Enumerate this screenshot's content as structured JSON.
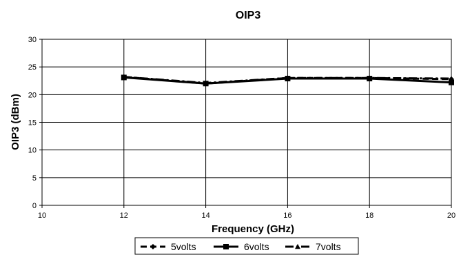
{
  "chart_data": {
    "type": "line",
    "title": "OIP3",
    "xlabel": "Frequency (GHz)",
    "ylabel": "OIP3 (dBm)",
    "xlim": [
      10,
      20
    ],
    "ylim": [
      0,
      30
    ],
    "xticks": [
      10,
      12,
      14,
      16,
      18,
      20
    ],
    "yticks": [
      0,
      5,
      10,
      15,
      20,
      25,
      30
    ],
    "xtick_labels": [
      "10",
      "12",
      "14",
      "16",
      "18",
      "20"
    ],
    "ytick_labels": [
      "0",
      "5",
      "10",
      "15",
      "20",
      "25",
      "30"
    ],
    "grid": true,
    "legend_position": "bottom",
    "x": [
      12,
      14,
      16,
      18,
      20
    ],
    "series": [
      {
        "name": "5volts",
        "marker": "diamond",
        "dash": "dashed",
        "values": [
          23.2,
          22.0,
          23.0,
          23.0,
          22.8
        ]
      },
      {
        "name": "6volts",
        "marker": "square",
        "dash": "solid",
        "values": [
          23.1,
          22.0,
          22.9,
          22.9,
          22.2
        ]
      },
      {
        "name": "7volts",
        "marker": "triangle",
        "dash": "dash-dot",
        "values": [
          23.2,
          22.1,
          23.0,
          23.0,
          22.9
        ]
      }
    ]
  }
}
